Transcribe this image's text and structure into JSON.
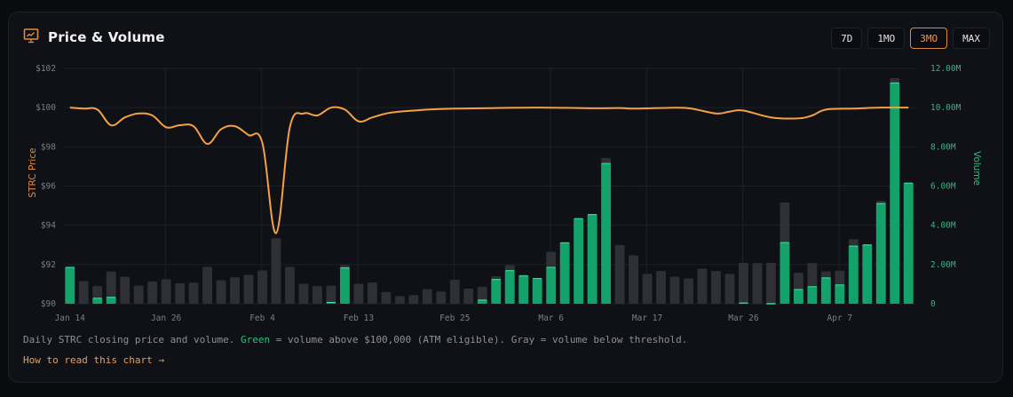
{
  "header": {
    "icon": "presentation-chart-icon",
    "title": "Price & Volume"
  },
  "range_buttons": [
    {
      "label": "7D",
      "active": false
    },
    {
      "label": "1MO",
      "active": false
    },
    {
      "label": "3MO",
      "active": true
    },
    {
      "label": "MAX",
      "active": false
    }
  ],
  "caption": {
    "prefix": "Daily STRC closing price and volume. ",
    "green_word": "Green",
    "middle": " = volume above $100,000 (ATM eligible). Gray = volume below threshold."
  },
  "howto_link": "How to read this chart →",
  "colors": {
    "price_line": "#f5a142",
    "eligible_bar": "#13a36a",
    "ineligible_bar": "#2f3036",
    "grid": "#1e2129",
    "left_axis_label": "#e08a3c",
    "right_axis_label": "#2fbf7f",
    "axis_tick_left": "#7c7f88",
    "axis_tick_right": "#39b47e"
  },
  "chart_data": {
    "type": "bar+line",
    "title": "Price & Volume",
    "ylabel_left": "STRC Price",
    "ylabel_right": "Volume",
    "left_ticks": [
      "$102",
      "$100",
      "$98",
      "$96",
      "$94",
      "$92",
      "$90"
    ],
    "left_range": [
      90,
      102
    ],
    "right_ticks": [
      "12.00M",
      "10.00M",
      "8.00M",
      "6.00M",
      "4.00M",
      "2.00M",
      "0"
    ],
    "right_range": [
      0,
      12000000
    ],
    "x_tick_labels": [
      {
        "label": "Jan 14",
        "index": 0
      },
      {
        "label": "Jan 26",
        "index": 7
      },
      {
        "label": "Feb 4",
        "index": 14
      },
      {
        "label": "Feb 13",
        "index": 21
      },
      {
        "label": "Feb 25",
        "index": 28
      },
      {
        "label": "Mar 6",
        "index": 35
      },
      {
        "label": "Mar 17",
        "index": 42
      },
      {
        "label": "Mar 26",
        "index": 49
      },
      {
        "label": "Apr 7",
        "index": 56
      }
    ],
    "legend": [
      "Green = volume above $100,000 (ATM eligible)",
      "Gray = volume below threshold"
    ],
    "volume_total_M": [
      1.88,
      1.16,
      0.9,
      1.65,
      1.38,
      0.92,
      1.14,
      1.25,
      1.04,
      1.07,
      1.88,
      1.2,
      1.35,
      1.47,
      1.7,
      3.34,
      1.88,
      1.02,
      0.9,
      0.92,
      1.97,
      1.02,
      1.08,
      0.6,
      0.39,
      0.44,
      0.75,
      0.62,
      1.22,
      0.77,
      0.87,
      1.41,
      1.97,
      1.47,
      1.31,
      2.65,
      3.13,
      4.36,
      4.57,
      7.43,
      2.99,
      2.47,
      1.52,
      1.67,
      1.38,
      1.29,
      1.79,
      1.67,
      1.52,
      2.09,
      2.08,
      2.09,
      5.17,
      1.58,
      2.08,
      1.65,
      1.68,
      3.29,
      3.02,
      5.25,
      11.5,
      6.17
    ],
    "volume_eligible_M": [
      1.88,
      0,
      0.3,
      0.35,
      0,
      0,
      0,
      0,
      0,
      0,
      0,
      0,
      0,
      0,
      0,
      0,
      0,
      0,
      0,
      0.09,
      1.85,
      0,
      0,
      0,
      0,
      0,
      0,
      0,
      0,
      0,
      0.21,
      1.26,
      1.71,
      1.44,
      1.31,
      1.88,
      3.13,
      4.36,
      4.57,
      7.17,
      0,
      0,
      0,
      0,
      0,
      0,
      0,
      0,
      0,
      0.06,
      0,
      0.03,
      3.14,
      0.75,
      0.89,
      1.34,
      0.98,
      2.96,
      3.02,
      5.13,
      11.28,
      6.17
    ],
    "price_points": [
      {
        "i": 0,
        "v": 100.0
      },
      {
        "i": 1,
        "v": 99.95
      },
      {
        "i": 2,
        "v": 99.9
      },
      {
        "i": 3,
        "v": 99.1
      },
      {
        "i": 4,
        "v": 99.5
      },
      {
        "i": 5,
        "v": 99.7
      },
      {
        "i": 6,
        "v": 99.6
      },
      {
        "i": 7,
        "v": 99.0
      },
      {
        "i": 8,
        "v": 99.1
      },
      {
        "i": 9,
        "v": 99.05
      },
      {
        "i": 10,
        "v": 98.15
      },
      {
        "i": 11,
        "v": 98.9
      },
      {
        "i": 12,
        "v": 99.05
      },
      {
        "i": 13,
        "v": 98.6
      },
      {
        "i": 14,
        "v": 98.2
      },
      {
        "i": 15,
        "v": 93.6
      },
      {
        "i": 16,
        "v": 99.0
      },
      {
        "i": 17,
        "v": 99.7
      },
      {
        "i": 18,
        "v": 99.6
      },
      {
        "i": 19,
        "v": 100.0
      },
      {
        "i": 20,
        "v": 99.9
      },
      {
        "i": 21,
        "v": 99.3
      },
      {
        "i": 22,
        "v": 99.5
      },
      {
        "i": 23,
        "v": 99.7
      },
      {
        "i": 24,
        "v": 99.8
      },
      {
        "i": 25,
        "v": 99.85
      },
      {
        "i": 26,
        "v": 99.9
      },
      {
        "i": 27,
        "v": 99.93
      },
      {
        "i": 28,
        "v": 99.95
      },
      {
        "i": 30,
        "v": 99.97
      },
      {
        "i": 34,
        "v": 100.0
      },
      {
        "i": 38,
        "v": 99.97
      },
      {
        "i": 40,
        "v": 99.98
      },
      {
        "i": 41,
        "v": 99.95
      },
      {
        "i": 43,
        "v": 99.98
      },
      {
        "i": 45,
        "v": 99.97
      },
      {
        "i": 47,
        "v": 99.7
      },
      {
        "i": 48,
        "v": 99.8
      },
      {
        "i": 49,
        "v": 99.85
      },
      {
        "i": 51,
        "v": 99.5
      },
      {
        "i": 53,
        "v": 99.45
      },
      {
        "i": 54,
        "v": 99.6
      },
      {
        "i": 55,
        "v": 99.9
      },
      {
        "i": 57,
        "v": 99.95
      },
      {
        "i": 59,
        "v": 100.0
      },
      {
        "i": 61,
        "v": 100.0
      }
    ]
  }
}
